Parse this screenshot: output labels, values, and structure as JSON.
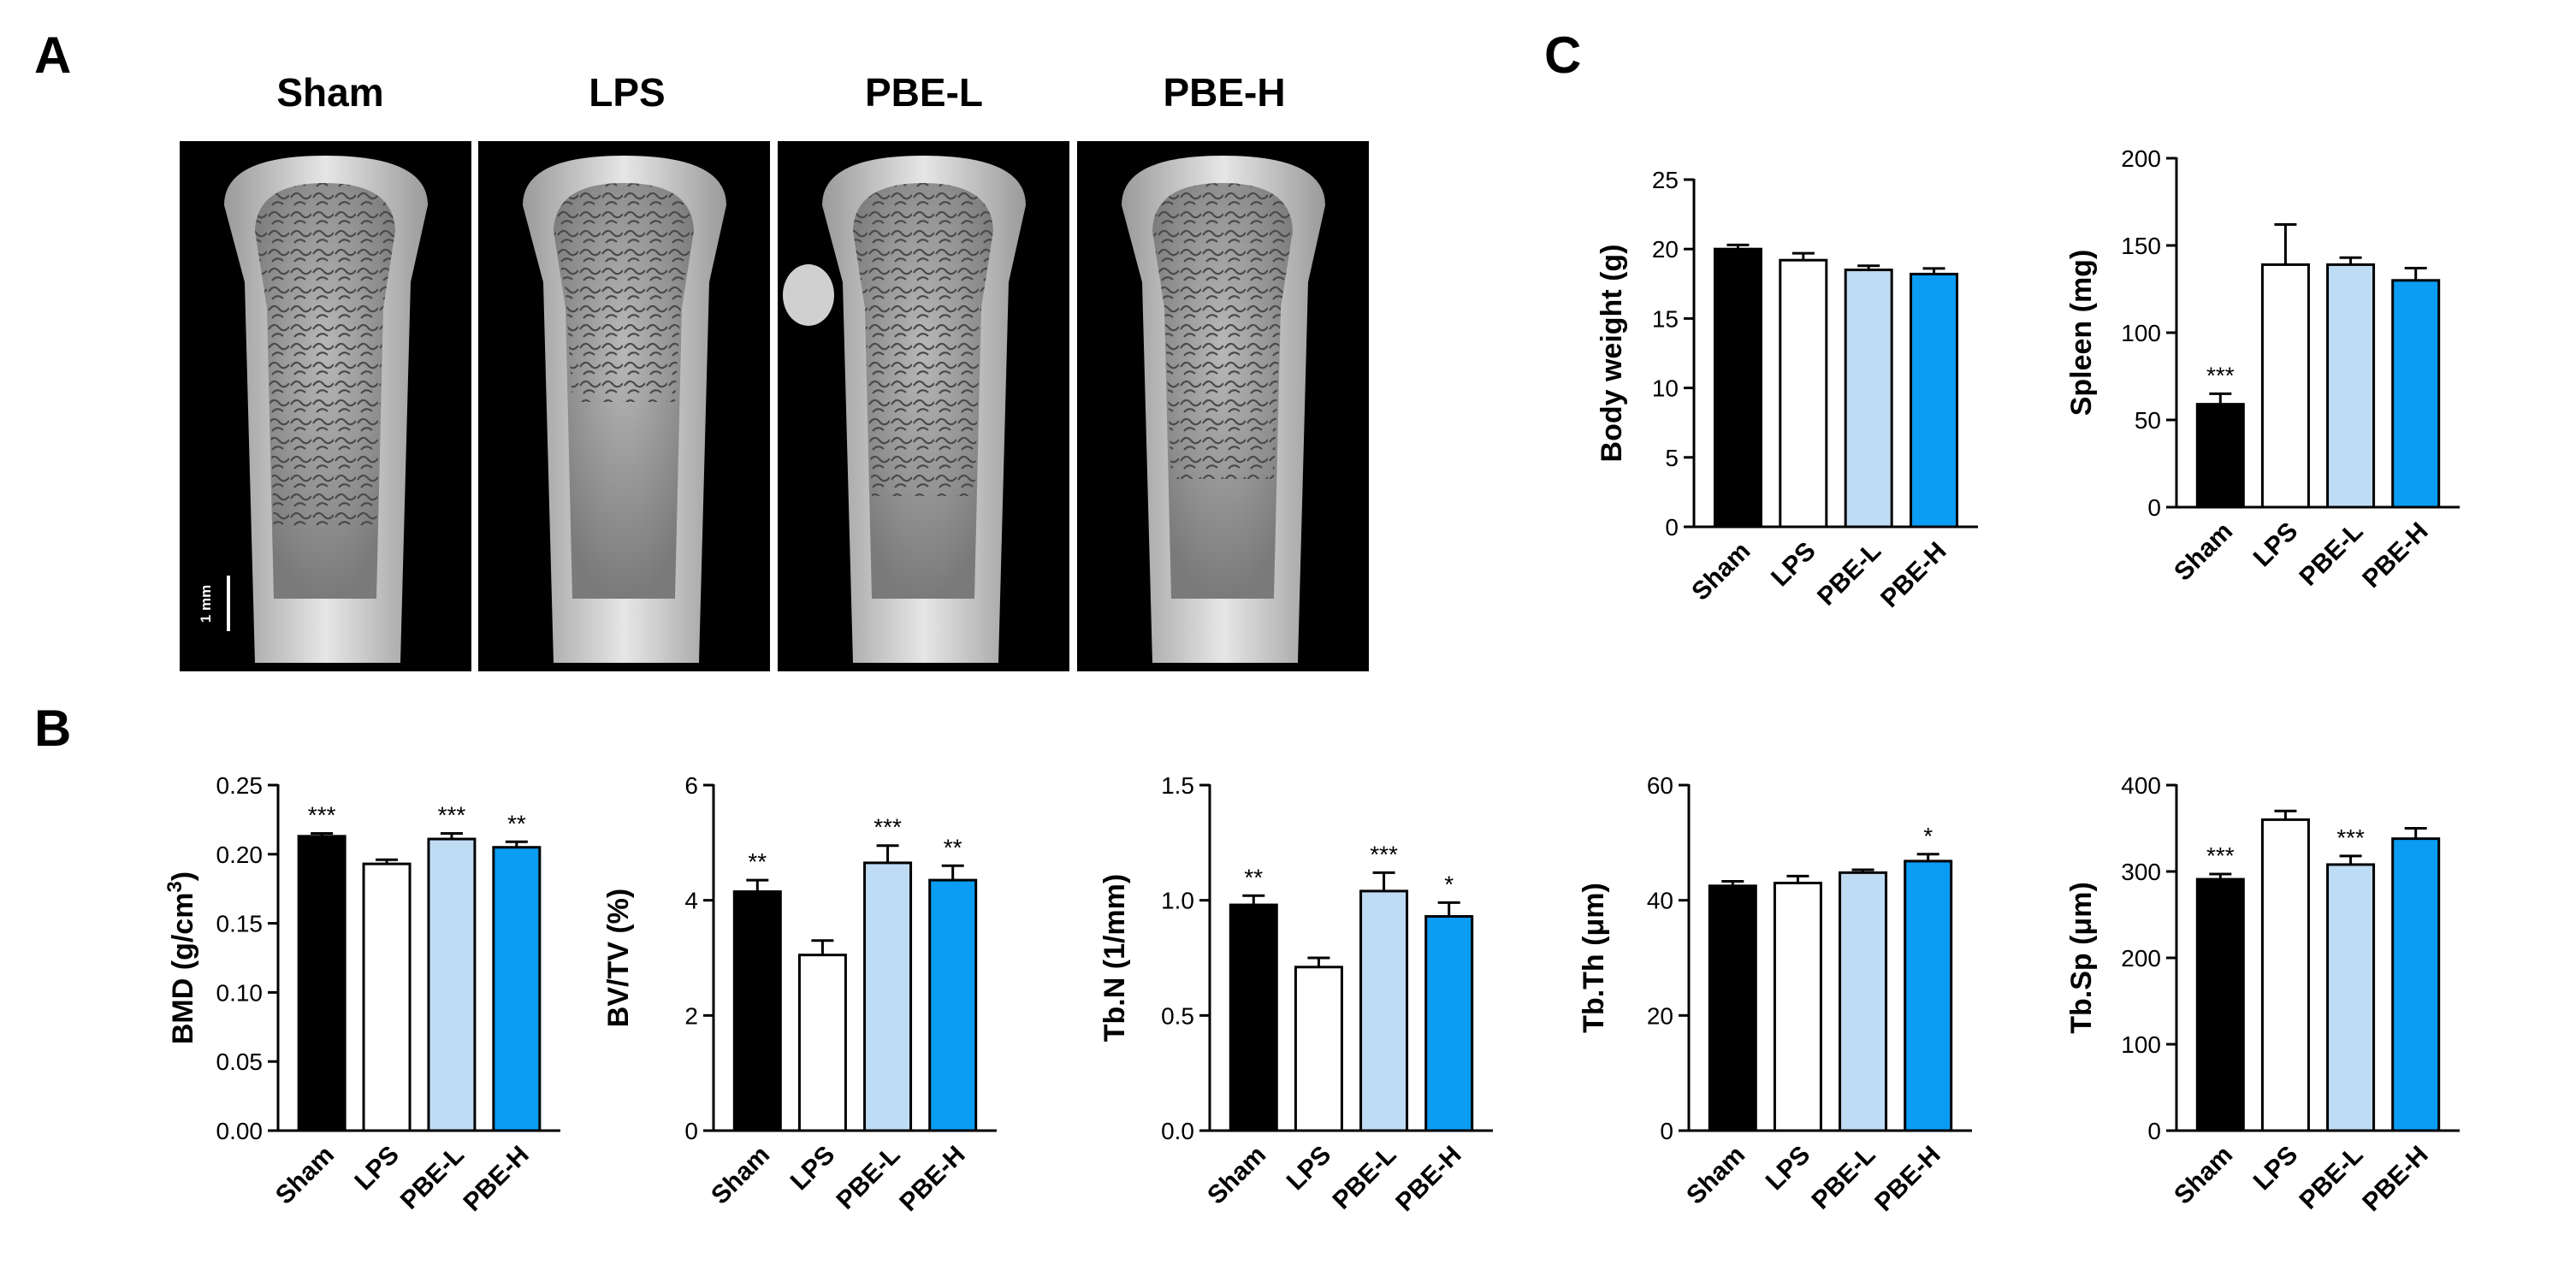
{
  "panels": {
    "a": "A",
    "b": "B",
    "c": "C"
  },
  "groups": [
    "Sham",
    "LPS",
    "PBE-L",
    "PBE-H"
  ],
  "colors": {
    "Sham": "#000000",
    "LPS": "#ffffff",
    "PBE-L": "#bfdcf5",
    "PBE-H": "#0b9cf3"
  },
  "scale_bar": "1 mm",
  "chart_data": [
    {
      "id": "bmd",
      "type": "bar",
      "categories": [
        "Sham",
        "LPS",
        "PBE-L",
        "PBE-H"
      ],
      "values": [
        0.213,
        0.193,
        0.211,
        0.205
      ],
      "errors": [
        0.002,
        0.003,
        0.004,
        0.004
      ],
      "significance": [
        "***",
        "",
        "***",
        "**"
      ],
      "ylabel": "BMD (g/cm",
      "ylabel_sup": "3",
      "ylabel_end": ")",
      "ylim": [
        0,
        0.25
      ],
      "yticks": [
        "0.00",
        "0.05",
        "0.10",
        "0.15",
        "0.20",
        "0.25"
      ]
    },
    {
      "id": "bvtv",
      "type": "bar",
      "categories": [
        "Sham",
        "LPS",
        "PBE-L",
        "PBE-H"
      ],
      "values": [
        4.15,
        3.05,
        4.65,
        4.35
      ],
      "errors": [
        0.2,
        0.25,
        0.3,
        0.25
      ],
      "significance": [
        "**",
        "",
        "***",
        "**"
      ],
      "ylabel": "BV/TV (%)",
      "ylim": [
        0,
        6
      ],
      "yticks": [
        "0",
        "2",
        "4",
        "6"
      ]
    },
    {
      "id": "tbn",
      "type": "bar",
      "categories": [
        "Sham",
        "LPS",
        "PBE-L",
        "PBE-H"
      ],
      "values": [
        0.98,
        0.71,
        1.04,
        0.93
      ],
      "errors": [
        0.04,
        0.04,
        0.08,
        0.06
      ],
      "significance": [
        "**",
        "",
        "***",
        "*"
      ],
      "ylabel": "Tb.N (1/mm)",
      "ylim": [
        0,
        1.5
      ],
      "yticks": [
        "0.0",
        "0.5",
        "1.0",
        "1.5"
      ]
    },
    {
      "id": "tbth",
      "type": "bar",
      "categories": [
        "Sham",
        "LPS",
        "PBE-L",
        "PBE-H"
      ],
      "values": [
        42.5,
        43.0,
        44.8,
        46.8
      ],
      "errors": [
        0.8,
        1.2,
        0.5,
        1.2
      ],
      "significance": [
        "",
        "",
        "",
        "*"
      ],
      "ylabel": "Tb.Th (μm)",
      "ylim": [
        0,
        60
      ],
      "yticks": [
        "0",
        "20",
        "40",
        "60"
      ]
    },
    {
      "id": "tbsp",
      "type": "bar",
      "categories": [
        "Sham",
        "LPS",
        "PBE-L",
        "PBE-H"
      ],
      "values": [
        291,
        360,
        308,
        338
      ],
      "errors": [
        6,
        10,
        10,
        12
      ],
      "significance": [
        "***",
        "",
        "***",
        ""
      ],
      "ylabel": "Tb.Sp (μm)",
      "ylim": [
        0,
        400
      ],
      "yticks": [
        "0",
        "100",
        "200",
        "300",
        "400"
      ]
    },
    {
      "id": "bw",
      "type": "bar",
      "categories": [
        "Sham",
        "LPS",
        "PBE-L",
        "PBE-H"
      ],
      "values": [
        20.0,
        19.2,
        18.5,
        18.2
      ],
      "errors": [
        0.3,
        0.5,
        0.3,
        0.4
      ],
      "significance": [
        "",
        "",
        "",
        ""
      ],
      "ylabel": "Body weight (g)",
      "ylim": [
        0,
        25
      ],
      "yticks": [
        "0",
        "5",
        "10",
        "15",
        "20",
        "25"
      ]
    },
    {
      "id": "spleen",
      "type": "bar",
      "categories": [
        "Sham",
        "LPS",
        "PBE-L",
        "PBE-H"
      ],
      "values": [
        59,
        139,
        139,
        130
      ],
      "errors": [
        6,
        23,
        4,
        7
      ],
      "significance": [
        "***",
        "",
        "",
        ""
      ],
      "ylabel": "Spleen (mg)",
      "ylim": [
        0,
        200
      ],
      "yticks": [
        "0",
        "50",
        "100",
        "150",
        "200"
      ]
    }
  ]
}
